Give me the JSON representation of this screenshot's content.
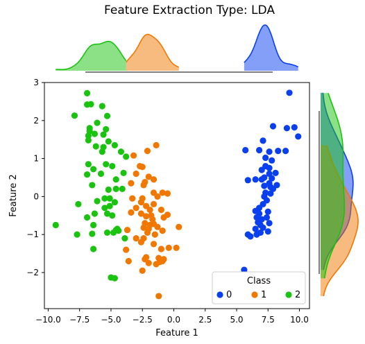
{
  "chart_data": {
    "type": "scatter",
    "title": "Feature Extraction Type: LDA",
    "xlabel": "Feature 1",
    "ylabel": "Feature 2",
    "xlim": [
      -10.3,
      10.8
    ],
    "ylim": [
      -2.95,
      3.0
    ],
    "xticks": [
      -10.0,
      -7.5,
      -5.0,
      -2.5,
      0.0,
      2.5,
      5.0,
      7.5,
      10.0
    ],
    "xtick_labels": [
      "−10.0",
      "−7.5",
      "−5.0",
      "−2.5",
      "0.0",
      "2.5",
      "5.0",
      "7.5",
      "10.0"
    ],
    "yticks": [
      -2,
      -1,
      0,
      1,
      2,
      3
    ],
    "ytick_labels": [
      "−2",
      "−1",
      "0",
      "1",
      "2",
      "3"
    ],
    "grid": false,
    "legend": {
      "title": "Class",
      "placement": "lower-right"
    },
    "marginals": {
      "top": "kde per class",
      "right": "kde per class"
    },
    "series": [
      {
        "name": "0",
        "color": "#0a3ff0",
        "points": [
          [
            9.2,
            2.73
          ],
          [
            7.9,
            1.85
          ],
          [
            9.0,
            1.8
          ],
          [
            9.6,
            1.82
          ],
          [
            9.9,
            1.58
          ],
          [
            7.1,
            1.47
          ],
          [
            6.8,
            1.22
          ],
          [
            7.6,
            1.18
          ],
          [
            8.3,
            1.2
          ],
          [
            5.7,
            1.22
          ],
          [
            7.3,
            1.02
          ],
          [
            8.9,
            1.2
          ],
          [
            7.8,
            0.95
          ],
          [
            7.3,
            0.8
          ],
          [
            7.6,
            0.75
          ],
          [
            7.0,
            0.7
          ],
          [
            7.6,
            0.6
          ],
          [
            8.1,
            0.62
          ],
          [
            7.2,
            0.5
          ],
          [
            7.8,
            0.48
          ],
          [
            7.0,
            0.45
          ],
          [
            6.5,
            0.45
          ],
          [
            5.9,
            0.43
          ],
          [
            7.6,
            0.35
          ],
          [
            8.2,
            0.3
          ],
          [
            7.2,
            0.28
          ],
          [
            7.7,
            0.25
          ],
          [
            7.9,
            0.2
          ],
          [
            7.3,
            0.1
          ],
          [
            7.7,
            0.08
          ],
          [
            7.2,
            0.0
          ],
          [
            7.4,
            -0.1
          ],
          [
            7.1,
            -0.2
          ],
          [
            6.8,
            -0.3
          ],
          [
            7.5,
            -0.4
          ],
          [
            6.5,
            -0.38
          ],
          [
            6.8,
            -0.45
          ],
          [
            7.4,
            -0.55
          ],
          [
            6.6,
            -0.55
          ],
          [
            7.0,
            -0.6
          ],
          [
            6.7,
            -0.68
          ],
          [
            6.9,
            -0.75
          ],
          [
            7.6,
            -0.7
          ],
          [
            7.1,
            -0.82
          ],
          [
            6.5,
            -0.85
          ],
          [
            6.9,
            -0.95
          ],
          [
            6.6,
            -1.0
          ],
          [
            7.5,
            -0.92
          ],
          [
            5.9,
            -1.0
          ],
          [
            6.1,
            -1.05
          ],
          [
            5.6,
            -1.93
          ]
        ]
      },
      {
        "name": "1",
        "color": "#f07800",
        "points": [
          [
            -1.4,
            1.35
          ],
          [
            -2.1,
            1.2
          ],
          [
            -3.2,
            1.08
          ],
          [
            -2.7,
            0.8
          ],
          [
            -2.5,
            0.78
          ],
          [
            -3.0,
            0.6
          ],
          [
            -2.0,
            0.52
          ],
          [
            -1.6,
            0.45
          ],
          [
            -2.3,
            0.38
          ],
          [
            -3.4,
            0.35
          ],
          [
            -2.4,
            0.3
          ],
          [
            -1.6,
            0.1
          ],
          [
            -0.9,
            0.1
          ],
          [
            -0.5,
            0.08
          ],
          [
            -1.3,
            0.0
          ],
          [
            -3.3,
            -0.05
          ],
          [
            -2.5,
            -0.05
          ],
          [
            -2.6,
            -0.15
          ],
          [
            -1.6,
            -0.2
          ],
          [
            -2.2,
            -0.25
          ],
          [
            -3.0,
            -0.3
          ],
          [
            -1.9,
            -0.35
          ],
          [
            -1.0,
            -0.35
          ],
          [
            -3.4,
            -0.42
          ],
          [
            -2.6,
            -0.45
          ],
          [
            -0.5,
            -0.48
          ],
          [
            -1.8,
            -0.5
          ],
          [
            -2.2,
            -0.52
          ],
          [
            -0.8,
            -0.55
          ],
          [
            -1.7,
            -0.6
          ],
          [
            -2.3,
            -0.7
          ],
          [
            -1.6,
            -0.72
          ],
          [
            -1.9,
            -0.75
          ],
          [
            0.4,
            -0.8
          ],
          [
            -1.3,
            -0.8
          ],
          [
            -2.4,
            -0.82
          ],
          [
            -2.0,
            -0.85
          ],
          [
            -3.7,
            -0.88
          ],
          [
            -0.9,
            -0.9
          ],
          [
            -2.1,
            -0.95
          ],
          [
            -1.5,
            -1.0
          ],
          [
            -3.0,
            -1.1
          ],
          [
            -2.4,
            -1.1
          ],
          [
            -2.6,
            -1.2
          ],
          [
            -1.6,
            -1.25
          ],
          [
            -0.4,
            -1.35
          ],
          [
            -3.8,
            -1.4
          ],
          [
            0.2,
            -1.35
          ],
          [
            -1.0,
            -1.38
          ],
          [
            -2.2,
            -1.6
          ],
          [
            -1.2,
            -1.62
          ],
          [
            -0.8,
            -1.65
          ],
          [
            -3.6,
            -1.7
          ],
          [
            -2.3,
            -1.65
          ],
          [
            -1.1,
            -1.72
          ],
          [
            -2.0,
            -1.75
          ],
          [
            -1.4,
            -1.78
          ],
          [
            -0.9,
            -1.7
          ],
          [
            -2.5,
            -1.95
          ],
          [
            -1.2,
            -2.62
          ]
        ]
      },
      {
        "name": "2",
        "color": "#19c30f",
        "points": [
          [
            -6.9,
            2.72
          ],
          [
            -6.9,
            2.42
          ],
          [
            -6.6,
            2.43
          ],
          [
            -5.7,
            2.38
          ],
          [
            -7.9,
            2.13
          ],
          [
            -5.3,
            2.12
          ],
          [
            -6.1,
            1.94
          ],
          [
            -5.4,
            1.77
          ],
          [
            -6.7,
            1.8
          ],
          [
            -6.7,
            1.72
          ],
          [
            -6.8,
            1.6
          ],
          [
            -6.3,
            1.65
          ],
          [
            -5.6,
            1.63
          ],
          [
            -6.8,
            1.48
          ],
          [
            -5.2,
            1.45
          ],
          [
            -6.2,
            1.32
          ],
          [
            -5.6,
            1.3
          ],
          [
            -4.7,
            1.35
          ],
          [
            -5.7,
            1.18
          ],
          [
            -4.2,
            1.18
          ],
          [
            -3.8,
            1.05
          ],
          [
            -6.8,
            0.85
          ],
          [
            -5.4,
            0.85
          ],
          [
            -4.9,
            0.8
          ],
          [
            -6.4,
            0.72
          ],
          [
            -5.8,
            0.6
          ],
          [
            -4.0,
            0.62
          ],
          [
            -6.9,
            0.58
          ],
          [
            -4.6,
            0.45
          ],
          [
            -6.5,
            0.3
          ],
          [
            -4.6,
            0.2
          ],
          [
            -4.1,
            0.2
          ],
          [
            -5.2,
            0.18
          ],
          [
            -5.5,
            -0.05
          ],
          [
            -5.1,
            -0.05
          ],
          [
            -6.1,
            -0.12
          ],
          [
            -4.7,
            -0.15
          ],
          [
            -7.6,
            -0.2
          ],
          [
            -5.1,
            -0.25
          ],
          [
            -5.5,
            -0.3
          ],
          [
            -5.3,
            -0.45
          ],
          [
            -6.3,
            -0.45
          ],
          [
            -6.9,
            -0.55
          ],
          [
            -4.9,
            -0.5
          ],
          [
            -6.4,
            -0.75
          ],
          [
            -9.4,
            -0.75
          ],
          [
            -4.4,
            -0.9
          ],
          [
            -5.3,
            -0.95
          ],
          [
            -4.8,
            -0.95
          ],
          [
            -4.5,
            -0.85
          ],
          [
            -4.6,
            -0.88
          ],
          [
            -7.7,
            -1.0
          ],
          [
            -6.5,
            -0.98
          ],
          [
            -3.9,
            -1.1
          ],
          [
            -6.4,
            -1.38
          ],
          [
            -5.0,
            -2.13
          ],
          [
            -4.7,
            -2.15
          ]
        ]
      }
    ]
  }
}
